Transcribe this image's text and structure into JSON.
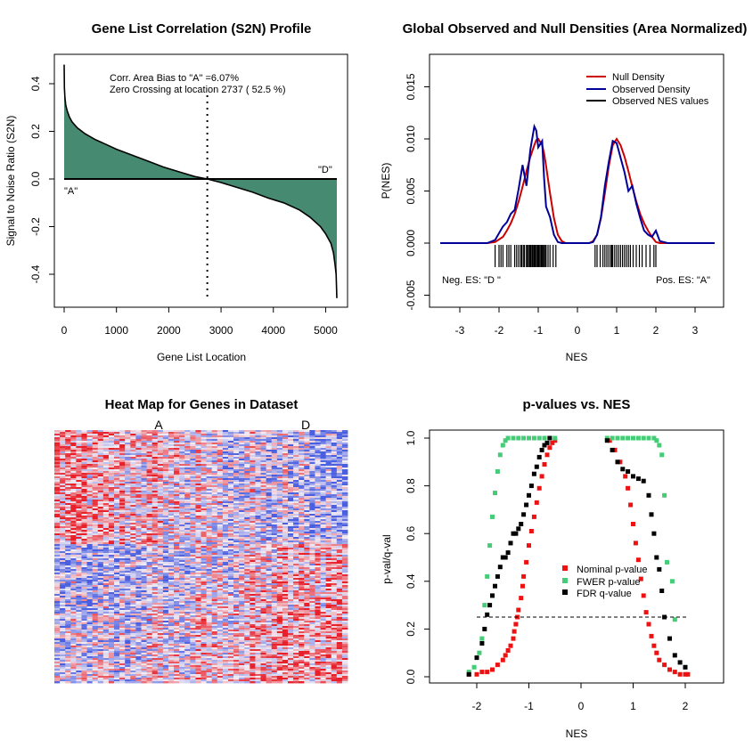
{
  "chart_data": [
    {
      "type": "area",
      "title": "Gene List Correlation (S2N) Profile",
      "xlabel": "Gene List Location",
      "ylabel": "Signal to Noise Ratio (S2N)",
      "xlim": [
        0,
        5214
      ],
      "ylim": [
        -0.55,
        0.5
      ],
      "xticks": [
        "0",
        "1000",
        "2000",
        "3000",
        "4000",
        "5000"
      ],
      "yticks": [
        "-0.4",
        "-0.2",
        "0.0",
        "0.2",
        "0.4"
      ],
      "fill_color": "#468a71",
      "annotations": [
        "Corr. Area Bias to \"A\" =6.07%",
        "Zero Crossing at location  2737  ( 52.5  %)"
      ],
      "end_labels": [
        "\"A\"",
        "\"D\""
      ],
      "zero_crossing": 2737,
      "x": [
        0,
        5,
        15,
        30,
        60,
        100,
        150,
        250,
        400,
        600,
        800,
        1000,
        1300,
        1600,
        1900,
        2200,
        2500,
        2737,
        3000,
        3300,
        3600,
        3900,
        4200,
        4500,
        4700,
        4900,
        5000,
        5100,
        5150,
        5180,
        5200,
        5214
      ],
      "y": [
        0.48,
        0.38,
        0.34,
        0.31,
        0.285,
        0.26,
        0.24,
        0.215,
        0.19,
        0.165,
        0.145,
        0.125,
        0.1,
        0.075,
        0.05,
        0.03,
        0.01,
        0.0,
        -0.015,
        -0.035,
        -0.055,
        -0.08,
        -0.1,
        -0.13,
        -0.16,
        -0.2,
        -0.23,
        -0.27,
        -0.31,
        -0.36,
        -0.4,
        -0.5
      ]
    },
    {
      "type": "line",
      "title": "Global Observed and Null Densities (Area Normalized)",
      "xlabel": "NES",
      "ylabel": "P(NES)",
      "xlim": [
        -3.6,
        3.6
      ],
      "ylim": [
        -0.006,
        0.018
      ],
      "xticks": [
        "-3",
        "-2",
        "-1",
        "0",
        "1",
        "2",
        "3"
      ],
      "yticks": [
        "-0.005",
        "0.000",
        "0.005",
        "0.010",
        "0.015"
      ],
      "legend": [
        "Null Density",
        "Observed Density",
        "Observed NES values"
      ],
      "legend_colors": [
        "#cc0000",
        "#000099",
        "#000000"
      ],
      "bottom_labels": [
        "Neg. ES: \"D \"",
        "Pos. ES: \"A\""
      ],
      "x": [
        -3.5,
        -2.3,
        -2.1,
        -1.9,
        -1.8,
        -1.7,
        -1.6,
        -1.5,
        -1.4,
        -1.3,
        -1.2,
        -1.1,
        -1.05,
        -1.0,
        -0.9,
        -0.85,
        -0.8,
        -0.7,
        -0.6,
        -0.5,
        -0.4,
        -0.3,
        0.0,
        0.3,
        0.4,
        0.5,
        0.6,
        0.7,
        0.8,
        0.9,
        1.0,
        1.1,
        1.2,
        1.3,
        1.4,
        1.5,
        1.6,
        1.7,
        1.8,
        1.9,
        2.0,
        2.1,
        2.3,
        3.5
      ],
      "series": [
        {
          "name": "Null Density",
          "values": [
            0,
            0,
            0.0001,
            0.0006,
            0.0012,
            0.0019,
            0.0028,
            0.004,
            0.0054,
            0.0069,
            0.0083,
            0.0094,
            0.0099,
            0.01,
            0.0094,
            0.0086,
            0.0074,
            0.0048,
            0.0024,
            0.0008,
            0.0002,
            0,
            0,
            0,
            0.0002,
            0.0008,
            0.0024,
            0.0048,
            0.0074,
            0.0094,
            0.01,
            0.0094,
            0.0083,
            0.0069,
            0.0054,
            0.004,
            0.0028,
            0.0019,
            0.0012,
            0.0006,
            0.0001,
            0,
            0,
            0
          ]
        },
        {
          "name": "Observed Density",
          "values": [
            0,
            0,
            0.0003,
            0.0016,
            0.002,
            0.0028,
            0.0032,
            0.0052,
            0.0075,
            0.0055,
            0.009,
            0.0112,
            0.0108,
            0.0092,
            0.0098,
            0.0062,
            0.0035,
            0.0025,
            0.0008,
            0.0001,
            0,
            0,
            0,
            0,
            0.0001,
            0.0008,
            0.0025,
            0.0055,
            0.0078,
            0.0098,
            0.0096,
            0.0082,
            0.0068,
            0.005,
            0.0055,
            0.0038,
            0.0024,
            0.0012,
            0.0008,
            0.0006,
            0.0012,
            0.0002,
            0,
            0
          ]
        }
      ],
      "rug": [
        -2.1,
        -2.0,
        -1.95,
        -1.9,
        -1.8,
        -1.75,
        -1.7,
        -1.6,
        -1.55,
        -1.5,
        -1.45,
        -1.42,
        -1.38,
        -1.35,
        -1.3,
        -1.28,
        -1.25,
        -1.22,
        -1.2,
        -1.18,
        -1.15,
        -1.12,
        -1.1,
        -1.08,
        -1.05,
        -1.02,
        -1.0,
        -0.98,
        -0.95,
        -0.92,
        -0.9,
        -0.88,
        -0.85,
        -0.82,
        -0.8,
        -0.75,
        -0.7,
        -0.62,
        -0.55,
        0.45,
        0.5,
        0.58,
        0.65,
        0.7,
        0.75,
        0.8,
        0.85,
        0.88,
        0.9,
        0.95,
        1.0,
        1.05,
        1.1,
        1.15,
        1.2,
        1.25,
        1.3,
        1.35,
        1.42,
        1.5,
        1.58,
        1.65,
        1.75,
        1.85,
        1.95,
        2.0
      ]
    },
    {
      "type": "heatmap",
      "title": "Heat Map for Genes in Dataset",
      "column_labels": [
        "A",
        "D"
      ],
      "colors": {
        "high": "#e8202a",
        "mid": "#f2ecf4",
        "low": "#4a5ee0"
      }
    },
    {
      "type": "scatter",
      "title": "p-values vs. NES",
      "xlabel": "NES",
      "ylabel": "p-val/q-val",
      "xlim": [
        -2.8,
        2.8
      ],
      "ylim": [
        -0.03,
        1.03
      ],
      "xticks": [
        "-2",
        "-1",
        "0",
        "1",
        "2"
      ],
      "yticks": [
        "0.0",
        "0.2",
        "0.4",
        "0.6",
        "0.8",
        "1.0"
      ],
      "threshold": 0.25,
      "legend": [
        "Nominal p-value",
        "FWER p-value",
        "FDR q-value"
      ],
      "series": [
        {
          "name": "Nominal p-value",
          "color": "#ee1111",
          "x": [
            -2.15,
            -2.0,
            -1.9,
            -1.8,
            -1.7,
            -1.6,
            -1.5,
            -1.45,
            -1.4,
            -1.35,
            -1.3,
            -1.28,
            -1.25,
            -1.22,
            -1.2,
            -1.15,
            -1.12,
            -1.1,
            -1.05,
            -1.0,
            -0.95,
            -0.9,
            -0.85,
            -0.8,
            -0.75,
            -0.7,
            -0.65,
            -0.6,
            -0.55,
            -0.5,
            0.55,
            0.65,
            0.75,
            0.85,
            0.9,
            0.95,
            1.0,
            1.05,
            1.1,
            1.15,
            1.2,
            1.25,
            1.3,
            1.35,
            1.4,
            1.45,
            1.5,
            1.6,
            1.7,
            1.8,
            1.9,
            2.0,
            2.05
          ],
          "y": [
            0.01,
            0.01,
            0.02,
            0.02,
            0.03,
            0.05,
            0.07,
            0.09,
            0.11,
            0.13,
            0.16,
            0.19,
            0.22,
            0.25,
            0.28,
            0.33,
            0.38,
            0.42,
            0.48,
            0.55,
            0.61,
            0.67,
            0.73,
            0.79,
            0.84,
            0.89,
            0.93,
            0.96,
            0.98,
            0.99,
            0.99,
            0.95,
            0.9,
            0.84,
            0.79,
            0.72,
            0.64,
            0.56,
            0.49,
            0.41,
            0.34,
            0.27,
            0.22,
            0.17,
            0.13,
            0.1,
            0.07,
            0.05,
            0.03,
            0.02,
            0.01,
            0.01,
            0.01
          ]
        },
        {
          "name": "FWER p-value",
          "color": "#44cc77",
          "x": [
            -2.15,
            -2.05,
            -1.95,
            -1.9,
            -1.85,
            -1.8,
            -1.75,
            -1.7,
            -1.65,
            -1.6,
            -1.55,
            -1.5,
            -1.45,
            -1.4,
            -1.3,
            -1.2,
            -1.1,
            -1.0,
            -0.9,
            -0.8,
            -0.7,
            -0.6,
            -0.5,
            0.5,
            0.6,
            0.7,
            0.8,
            0.9,
            1.0,
            1.1,
            1.2,
            1.3,
            1.4,
            1.45,
            1.5,
            1.55,
            1.6,
            1.65,
            1.75,
            1.8,
            2.0
          ],
          "y": [
            0.02,
            0.04,
            0.1,
            0.16,
            0.3,
            0.42,
            0.55,
            0.67,
            0.77,
            0.86,
            0.93,
            0.97,
            0.99,
            1.0,
            1.0,
            1.0,
            1.0,
            1.0,
            1.0,
            1.0,
            1.0,
            1.0,
            1.0,
            1.0,
            1.0,
            1.0,
            1.0,
            1.0,
            1.0,
            1.0,
            1.0,
            1.0,
            1.0,
            0.99,
            0.97,
            0.93,
            0.76,
            0.48,
            0.4,
            0.24,
            0.04
          ]
        },
        {
          "name": "FDR q-value",
          "color": "#000000",
          "x": [
            -2.15,
            -2.0,
            -1.9,
            -1.85,
            -1.8,
            -1.75,
            -1.7,
            -1.65,
            -1.6,
            -1.55,
            -1.5,
            -1.45,
            -1.4,
            -1.35,
            -1.3,
            -1.25,
            -1.2,
            -1.15,
            -1.1,
            -1.05,
            -1.0,
            -0.95,
            -0.9,
            -0.85,
            -0.8,
            -0.75,
            -0.7,
            -0.65,
            -0.6,
            0.5,
            0.6,
            0.7,
            0.8,
            0.9,
            1.0,
            1.1,
            1.2,
            1.3,
            1.35,
            1.4,
            1.45,
            1.5,
            1.55,
            1.6,
            1.7,
            1.8,
            1.9,
            2.0
          ],
          "y": [
            0.01,
            0.08,
            0.14,
            0.2,
            0.26,
            0.3,
            0.34,
            0.38,
            0.42,
            0.46,
            0.5,
            0.5,
            0.52,
            0.56,
            0.6,
            0.6,
            0.62,
            0.64,
            0.68,
            0.72,
            0.76,
            0.8,
            0.85,
            0.88,
            0.92,
            0.95,
            0.97,
            0.98,
            1.0,
            0.99,
            0.95,
            0.9,
            0.87,
            0.86,
            0.84,
            0.83,
            0.82,
            0.76,
            0.68,
            0.6,
            0.5,
            0.45,
            0.36,
            0.25,
            0.16,
            0.09,
            0.06,
            0.04
          ]
        }
      ]
    }
  ]
}
